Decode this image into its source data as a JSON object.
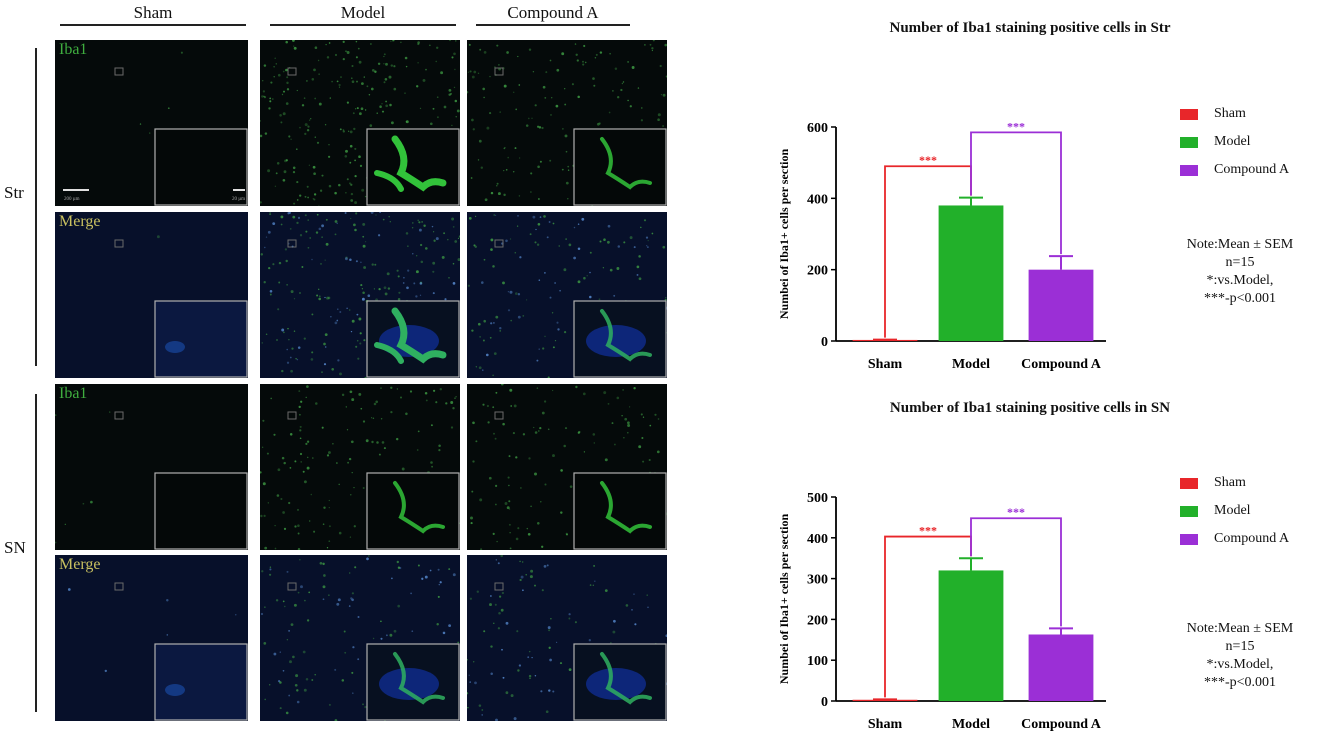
{
  "figure": {
    "columns": [
      "Sham",
      "Model",
      "Compound A"
    ],
    "rows": [
      "Str",
      "SN"
    ],
    "panel_labels": [
      "Iba1",
      "Merge",
      "Iba1",
      "Merge"
    ],
    "scale_bar_labels": [
      "200 µm",
      "20 µm"
    ]
  },
  "legend": [
    {
      "label": "Sham",
      "color": "#e8262a"
    },
    {
      "label": "Model",
      "color": "#22b02a"
    },
    {
      "label": "Compound A",
      "color": "#9b2fd6"
    }
  ],
  "note": {
    "line1": "Note:Mean ± SEM",
    "line2": "n=15",
    "line3": "*:vs.Model,",
    "line4": "***-p<0.001"
  },
  "chart_data": [
    {
      "type": "bar",
      "title": "Number of Iba1 staining  positive cells in Str",
      "categories": [
        "Sham",
        "Model",
        "Compound A"
      ],
      "values": [
        3,
        380,
        200
      ],
      "errors": [
        1,
        22,
        38
      ],
      "colors": [
        "#e8262a",
        "#22b02a",
        "#9b2fd6"
      ],
      "ylabel": "Numbei of  Iba1+ cells per section",
      "ylim": [
        0,
        600
      ],
      "yticks": [
        0,
        200,
        400,
        600
      ],
      "significance": [
        {
          "from": 0,
          "to": 1,
          "label": "***",
          "color": "#e8262a",
          "level": 490
        },
        {
          "from": 1,
          "to": 2,
          "label": "***",
          "color": "#9b2fd6",
          "level": 585
        }
      ]
    },
    {
      "type": "bar",
      "title": "Number of Iba1 staining  positive cells in SN",
      "categories": [
        "Sham",
        "Model",
        "Compound A"
      ],
      "values": [
        3,
        320,
        163
      ],
      "errors": [
        1,
        30,
        15
      ],
      "colors": [
        "#e8262a",
        "#22b02a",
        "#9b2fd6"
      ],
      "ylabel": "Numbei of  Iba1+ cells per section",
      "ylim": [
        0,
        500
      ],
      "yticks": [
        0,
        100,
        200,
        300,
        400,
        500
      ],
      "significance": [
        {
          "from": 0,
          "to": 1,
          "label": "***",
          "color": "#e8262a",
          "level": 403
        },
        {
          "from": 1,
          "to": 2,
          "label": "***",
          "color": "#9b2fd6",
          "level": 448
        }
      ]
    }
  ]
}
